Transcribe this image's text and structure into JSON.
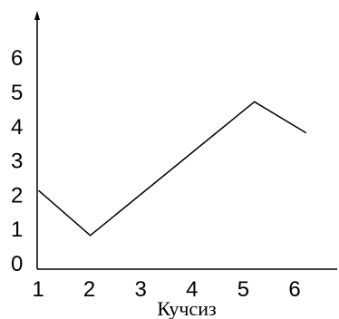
{
  "chart_data": {
    "type": "line",
    "x_ticks": [
      "1",
      "2",
      "3",
      "4",
      "5",
      "6"
    ],
    "y_ticks": [
      "0",
      "1",
      "2",
      "3",
      "4",
      "5",
      "6"
    ],
    "x": [
      1,
      2,
      5.2,
      6.2
    ],
    "y": [
      2.1,
      0.8,
      4.7,
      3.8
    ],
    "xlabel": "Кучсиз",
    "ylabel": "",
    "title": "",
    "xlim": [
      1,
      6.5
    ],
    "ylim": [
      0,
      7
    ],
    "grid": false,
    "line_color": "#000000"
  }
}
